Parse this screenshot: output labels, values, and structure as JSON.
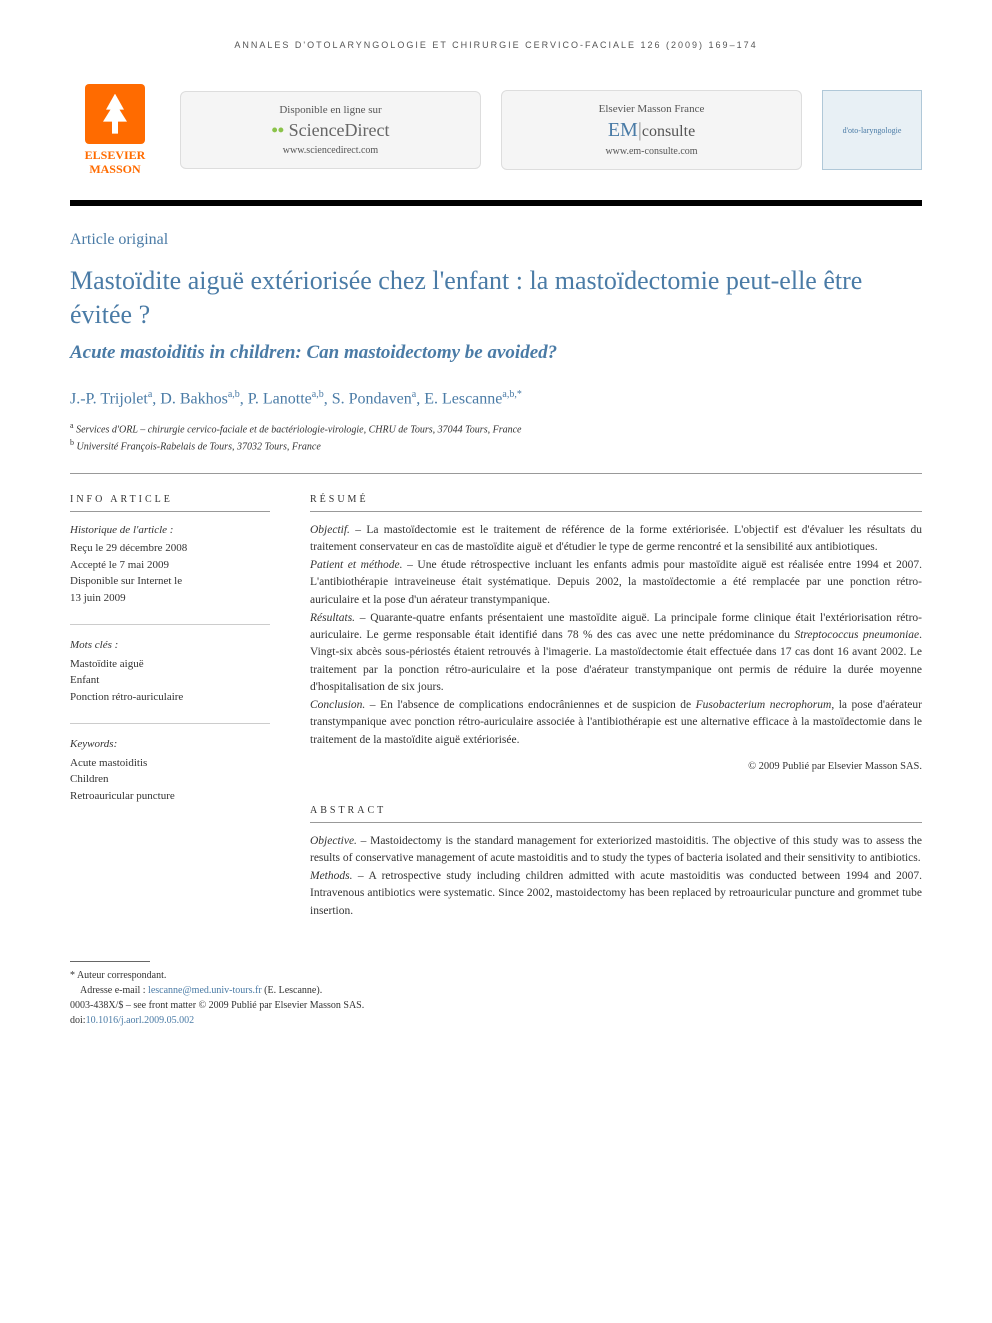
{
  "journal_header": "ANNALES D'OTOLARYNGOLOGIE ET CHIRURGIE CERVICO-FACIALE 126 (2009) 169–174",
  "publisher": {
    "name_line1": "ELSEVIER",
    "name_line2": "MASSON"
  },
  "online_box_1": {
    "label": "Disponible en ligne sur",
    "brand_prefix": "",
    "brand_main": "ScienceDirect",
    "url": "www.sciencedirect.com"
  },
  "online_box_2": {
    "label": "Elsevier Masson France",
    "brand_em": "EM",
    "brand_consulte": "consulte",
    "url": "www.em-consulte.com"
  },
  "journal_badge": "d'oto-laryngologie",
  "article_type": "Article original",
  "title_fr": "Mastoïdite aiguë extériorisée chez l'enfant : la mastoïdectomie peut-elle être évitée ?",
  "title_en": "Acute mastoiditis in children: Can mastoidectomy be avoided?",
  "authors_html": "J.-P. Trijolet<sup>a</sup>, D. Bakhos<sup>a,b</sup>, P. Lanotte<sup>a,b</sup>, S. Pondaven<sup>a</sup>, E. Lescanne<sup>a,b,*</sup>",
  "affiliations": [
    {
      "sup": "a",
      "text": "Services d'ORL – chirurgie cervico-faciale et de bactériologie-virologie, CHRU de Tours, 37044 Tours, France"
    },
    {
      "sup": "b",
      "text": "Université François-Rabelais de Tours, 37032 Tours, France"
    }
  ],
  "info_head": "INFO ARTICLE",
  "history": {
    "subhead": "Historique de l'article :",
    "lines": [
      "Reçu le 29 décembre 2008",
      "Accepté le 7 mai 2009",
      "Disponible sur Internet le",
      "13 juin 2009"
    ]
  },
  "mots_cles": {
    "subhead": "Mots clés :",
    "items": [
      "Mastoïdite aiguë",
      "Enfant",
      "Ponction rétro-auriculaire"
    ]
  },
  "keywords": {
    "subhead": "Keywords:",
    "items": [
      "Acute mastoiditis",
      "Children",
      "Retroauricular puncture"
    ]
  },
  "resume_head": "RÉSUMÉ",
  "resume": {
    "objectif_label": "Objectif. –",
    "objectif": " La mastoïdectomie est le traitement de référence de la forme extériorisée. L'objectif est d'évaluer les résultats du traitement conservateur en cas de mastoïdite aiguë et d'étudier le type de germe rencontré et la sensibilité aux antibiotiques.",
    "methode_label": "Patient et méthode. –",
    "methode": " Une étude rétrospective incluant les enfants admis pour mastoïdite aiguë est réalisée entre 1994 et 2007. L'antibiothérapie intraveineuse était systématique. Depuis 2002, la mastoïdectomie a été remplacée par une ponction rétro-auriculaire et la pose d'un aérateur transtympanique.",
    "resultats_label": "Résultats. –",
    "resultats_before": " Quarante-quatre enfants présentaient une mastoïdite aiguë. La principale forme clinique était l'extériorisation rétro-auriculaire. Le germe responsable était identifié dans 78 % des cas avec une nette prédominance du ",
    "resultats_species": "Streptococcus pneumoniae",
    "resultats_after": ". Vingt-six abcès sous-périostés étaient retrouvés à l'imagerie. La mastoïdectomie était effectuée dans 17 cas dont 16 avant 2002. Le traitement par la ponction rétro-auriculaire et la pose d'aérateur transtympanique ont permis de réduire la durée moyenne d'hospitalisation de six jours.",
    "conclusion_label": "Conclusion. –",
    "conclusion_before": " En l'absence de complications endocrâniennes et de suspicion de ",
    "conclusion_species": "Fusobacterium necrophorum",
    "conclusion_after": ", la pose d'aérateur transtympanique avec ponction rétro-auriculaire associée à l'antibiothérapie est une alternative efficace à la mastoïdectomie dans le traitement de la mastoïdite aiguë extériorisée.",
    "copyright": "© 2009 Publié par Elsevier Masson SAS."
  },
  "abstract_head": "ABSTRACT",
  "abstract": {
    "objective_label": "Objective. –",
    "objective": " Mastoidectomy is the standard management for exteriorized mastoiditis. The objective of this study was to assess the results of conservative management of acute mastoiditis and to study the types of bacteria isolated and their sensitivity to antibiotics.",
    "methods_label": "Methods. –",
    "methods": " A retrospective study including children admitted with acute mastoiditis was conducted between 1994 and 2007. Intravenous antibiotics were systematic. Since 2002, mastoidectomy has been replaced by retroauricular puncture and grommet tube insertion."
  },
  "footer": {
    "corresponding": "* Auteur correspondant.",
    "email_label": "Adresse e-mail : ",
    "email": "lescanne@med.univ-tours.fr",
    "email_suffix": " (E. Lescanne).",
    "issn_line": "0003-438X/$ – see front matter © 2009 Publié par Elsevier Masson SAS.",
    "doi_label": "doi:",
    "doi": "10.1016/j.aorl.2009.05.002"
  },
  "colors": {
    "brand_blue": "#4a7ba6",
    "elsevier_orange": "#ff6b00",
    "text": "#333333",
    "rule": "#000000"
  }
}
